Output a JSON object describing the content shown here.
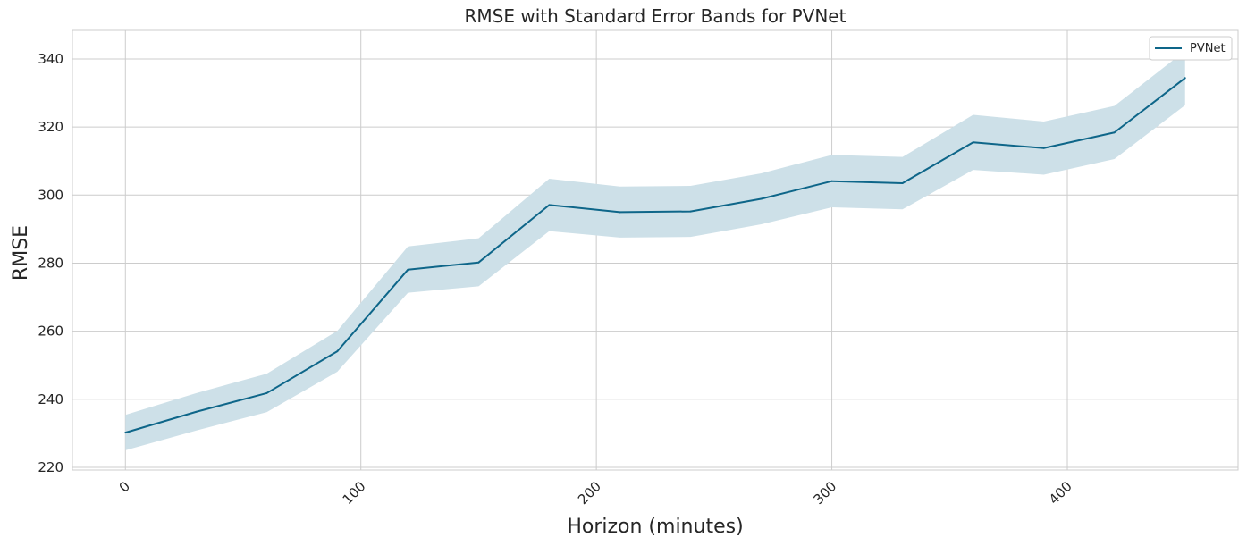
{
  "chart_data": {
    "type": "line",
    "title": "RMSE with Standard Error Bands for PVNet",
    "xlabel": "Horizon (minutes)",
    "ylabel": "RMSE",
    "xlim": [
      -22.5,
      472.5
    ],
    "ylim": [
      219.2,
      348.4
    ],
    "xticks": [
      0,
      100,
      200,
      300,
      400
    ],
    "yticks": [
      220,
      240,
      260,
      280,
      300,
      320,
      340
    ],
    "grid": true,
    "legend_position": "top-right",
    "series": [
      {
        "name": "PVNet",
        "color": "#0e6689",
        "band_color": "#cde0e8",
        "x": [
          0,
          30,
          60,
          90,
          120,
          150,
          180,
          210,
          240,
          270,
          300,
          330,
          360,
          390,
          420,
          450
        ],
        "values": [
          230.2,
          236.3,
          241.8,
          254.1,
          278.1,
          280.2,
          297.1,
          295.0,
          295.2,
          298.9,
          304.1,
          303.5,
          315.5,
          313.8,
          318.4,
          334.4
        ],
        "lower": [
          225.0,
          230.8,
          236.2,
          248.1,
          271.3,
          273.2,
          289.4,
          287.5,
          287.7,
          291.4,
          296.4,
          295.8,
          307.4,
          306.0,
          310.6,
          326.4
        ],
        "upper": [
          235.4,
          241.8,
          247.5,
          260.1,
          284.9,
          287.3,
          304.8,
          302.5,
          302.7,
          306.4,
          311.8,
          311.2,
          323.6,
          321.6,
          326.2,
          342.4
        ]
      }
    ]
  }
}
